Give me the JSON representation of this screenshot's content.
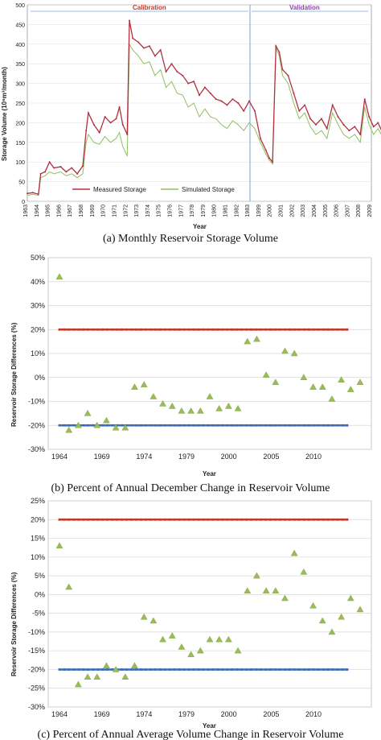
{
  "chart_data": [
    {
      "type": "line",
      "title": "",
      "ylabel": "Storage Volume (10⁶m³/month)",
      "xlabel": "Year",
      "ylim": [
        0,
        500
      ],
      "yticks": [
        "0",
        "50",
        "100",
        "150",
        "200",
        "250",
        "300",
        "350",
        "400",
        "450",
        "500"
      ],
      "xticks": [
        "1963",
        "1964",
        "1965",
        "1966",
        "1967",
        "1968",
        "1969",
        "1970",
        "1971",
        "1972",
        "1973",
        "1974",
        "1975",
        "1976",
        "1977",
        "1978",
        "1979",
        "1980",
        "1981",
        "1982",
        "1983",
        "1999",
        "2000",
        "2001",
        "2002",
        "2003",
        "2004",
        "2005",
        "2006",
        "2007",
        "2008",
        "2009"
      ],
      "periods": [
        {
          "label": "Calibration",
          "color": "#c0392b"
        },
        {
          "label": "Validation",
          "color": "#8e44ad"
        }
      ],
      "legend": [
        "Measured Storage",
        "Simulated Storage"
      ],
      "series": [
        {
          "name": "Measured Storage",
          "color": "#b03040",
          "points": [
            [
              0,
              20
            ],
            [
              0.5,
              22
            ],
            [
              1,
              18
            ],
            [
              1.2,
              70
            ],
            [
              1.6,
              75
            ],
            [
              2,
              100
            ],
            [
              2.4,
              85
            ],
            [
              3,
              88
            ],
            [
              3.5,
              75
            ],
            [
              4,
              85
            ],
            [
              4.5,
              70
            ],
            [
              5,
              90
            ],
            [
              5.3,
              180
            ],
            [
              5.5,
              225
            ],
            [
              6,
              195
            ],
            [
              6.5,
              175
            ],
            [
              7,
              215
            ],
            [
              7.5,
              200
            ],
            [
              8,
              210
            ],
            [
              8.3,
              240
            ],
            [
              8.6,
              195
            ],
            [
              9,
              170
            ],
            [
              9.2,
              460
            ],
            [
              9.5,
              415
            ],
            [
              10,
              405
            ],
            [
              10.5,
              390
            ],
            [
              11,
              395
            ],
            [
              11.5,
              370
            ],
            [
              12,
              385
            ],
            [
              12.5,
              330
            ],
            [
              13,
              350
            ],
            [
              13.5,
              330
            ],
            [
              14,
              320
            ],
            [
              14.5,
              300
            ],
            [
              15,
              305
            ],
            [
              15.5,
              270
            ],
            [
              16,
              290
            ],
            [
              16.5,
              275
            ],
            [
              17,
              260
            ],
            [
              17.5,
              255
            ],
            [
              18,
              245
            ],
            [
              18.5,
              260
            ],
            [
              19,
              250
            ],
            [
              19.5,
              230
            ],
            [
              20,
              255
            ],
            [
              20.5,
              230
            ],
            [
              21,
              160
            ],
            [
              21.5,
              130
            ],
            [
              21.8,
              110
            ],
            [
              22.1,
              100
            ],
            [
              22.4,
              395
            ],
            [
              22.7,
              380
            ],
            [
              23,
              335
            ],
            [
              23.5,
              320
            ],
            [
              24,
              275
            ],
            [
              24.5,
              230
            ],
            [
              25,
              245
            ],
            [
              25.5,
              210
            ],
            [
              26,
              195
            ],
            [
              26.5,
              210
            ],
            [
              27,
              185
            ],
            [
              27.5,
              245
            ],
            [
              28,
              215
            ],
            [
              28.5,
              195
            ],
            [
              29,
              180
            ],
            [
              29.5,
              190
            ],
            [
              30,
              170
            ],
            [
              30.4,
              260
            ],
            [
              30.8,
              215
            ],
            [
              31.2,
              190
            ],
            [
              31.6,
              200
            ],
            [
              32,
              175
            ]
          ]
        },
        {
          "name": "Simulated Storage",
          "color": "#8fbf5f",
          "points": [
            [
              0,
              15
            ],
            [
              0.5,
              18
            ],
            [
              1,
              15
            ],
            [
              1.2,
              60
            ],
            [
              1.6,
              65
            ],
            [
              2,
              75
            ],
            [
              2.4,
              70
            ],
            [
              3,
              75
            ],
            [
              3.5,
              65
            ],
            [
              4,
              70
            ],
            [
              4.5,
              60
            ],
            [
              5,
              70
            ],
            [
              5.3,
              150
            ],
            [
              5.5,
              170
            ],
            [
              6,
              150
            ],
            [
              6.5,
              145
            ],
            [
              7,
              165
            ],
            [
              7.5,
              150
            ],
            [
              8,
              160
            ],
            [
              8.3,
              175
            ],
            [
              8.6,
              140
            ],
            [
              9,
              115
            ],
            [
              9.2,
              400
            ],
            [
              9.5,
              385
            ],
            [
              10,
              370
            ],
            [
              10.5,
              350
            ],
            [
              11,
              355
            ],
            [
              11.5,
              320
            ],
            [
              12,
              335
            ],
            [
              12.5,
              290
            ],
            [
              13,
              305
            ],
            [
              13.5,
              275
            ],
            [
              14,
              270
            ],
            [
              14.5,
              240
            ],
            [
              15,
              250
            ],
            [
              15.5,
              215
            ],
            [
              16,
              235
            ],
            [
              16.5,
              215
            ],
            [
              17,
              210
            ],
            [
              17.5,
              195
            ],
            [
              18,
              185
            ],
            [
              18.5,
              205
            ],
            [
              19,
              195
            ],
            [
              19.5,
              180
            ],
            [
              20,
              200
            ],
            [
              20.5,
              185
            ],
            [
              21,
              150
            ],
            [
              21.5,
              120
            ],
            [
              21.8,
              105
            ],
            [
              22.1,
              95
            ],
            [
              22.4,
              390
            ],
            [
              22.7,
              370
            ],
            [
              23,
              320
            ],
            [
              23.5,
              300
            ],
            [
              24,
              250
            ],
            [
              24.5,
              210
            ],
            [
              25,
              225
            ],
            [
              25.5,
              190
            ],
            [
              26,
              170
            ],
            [
              26.5,
              180
            ],
            [
              27,
              160
            ],
            [
              27.5,
              225
            ],
            [
              28,
              195
            ],
            [
              28.5,
              170
            ],
            [
              29,
              160
            ],
            [
              29.5,
              170
            ],
            [
              30,
              150
            ],
            [
              30.4,
              240
            ],
            [
              30.8,
              195
            ],
            [
              31.2,
              170
            ],
            [
              31.6,
              185
            ],
            [
              32,
              165
            ]
          ]
        }
      ],
      "caption": "(a) Monthly Reservoir Storage Volume"
    },
    {
      "type": "scatter",
      "ylabel": "Reservoir Storage Differences (%)",
      "xlabel": "Year",
      "ylim": [
        -30,
        50
      ],
      "yticks": [
        "-30%",
        "-20%",
        "-10%",
        "0%",
        "10%",
        "20%",
        "30%",
        "40%",
        "50%"
      ],
      "xticks": [
        "1964",
        "1969",
        "1974",
        "1979",
        "2000",
        "2005",
        "2010"
      ],
      "bounds": [
        {
          "value": 20,
          "color": "#c0392b"
        },
        {
          "value": -20,
          "color": "#3a6fb5"
        }
      ],
      "points": [
        [
          0,
          42
        ],
        [
          1,
          -22
        ],
        [
          2,
          -20
        ],
        [
          3,
          -15
        ],
        [
          4,
          -20
        ],
        [
          5,
          -18
        ],
        [
          6,
          -21
        ],
        [
          7,
          -21
        ],
        [
          8,
          -4
        ],
        [
          9,
          -3
        ],
        [
          10,
          -8
        ],
        [
          11,
          -11
        ],
        [
          12,
          -12
        ],
        [
          13,
          -14
        ],
        [
          14,
          -14
        ],
        [
          15,
          -14
        ],
        [
          16,
          -8
        ],
        [
          17,
          -13
        ],
        [
          18,
          -12
        ],
        [
          19,
          -13
        ],
        [
          20,
          15
        ],
        [
          21,
          16
        ],
        [
          22,
          1
        ],
        [
          23,
          -2
        ],
        [
          24,
          11
        ],
        [
          25,
          10
        ],
        [
          26,
          0
        ],
        [
          27,
          -4
        ],
        [
          28,
          -4
        ],
        [
          29,
          -9
        ],
        [
          30,
          -1
        ],
        [
          31,
          -5
        ],
        [
          32,
          -2
        ]
      ],
      "caption": "(b) Percent of Annual December Change in Reservoir Volume"
    },
    {
      "type": "scatter",
      "ylabel": "Reservoir Storage Differences (%)",
      "xlabel": "Year",
      "ylim": [
        -30,
        25
      ],
      "yticks": [
        "-30%",
        "-25%",
        "-20%",
        "-15%",
        "-10%",
        "-5%",
        "0%",
        "5%",
        "10%",
        "15%",
        "20%",
        "25%"
      ],
      "xticks": [
        "1964",
        "1969",
        "1974",
        "1979",
        "2000",
        "2005",
        "2010"
      ],
      "bounds": [
        {
          "value": 20,
          "color": "#c0392b"
        },
        {
          "value": -20,
          "color": "#3a6fb5"
        }
      ],
      "points": [
        [
          0,
          13
        ],
        [
          1,
          2
        ],
        [
          2,
          -24
        ],
        [
          3,
          -22
        ],
        [
          4,
          -22
        ],
        [
          5,
          -19
        ],
        [
          6,
          -20
        ],
        [
          7,
          -22
        ],
        [
          8,
          -19
        ],
        [
          9,
          -6
        ],
        [
          10,
          -7
        ],
        [
          11,
          -12
        ],
        [
          12,
          -11
        ],
        [
          13,
          -14
        ],
        [
          14,
          -16
        ],
        [
          15,
          -15
        ],
        [
          16,
          -12
        ],
        [
          17,
          -12
        ],
        [
          18,
          -12
        ],
        [
          19,
          -15
        ],
        [
          20,
          1
        ],
        [
          21,
          5
        ],
        [
          22,
          1
        ],
        [
          23,
          1
        ],
        [
          24,
          -1
        ],
        [
          25,
          11
        ],
        [
          26,
          6
        ],
        [
          27,
          -3
        ],
        [
          28,
          -7
        ],
        [
          29,
          -10
        ],
        [
          30,
          -6
        ],
        [
          31,
          -1
        ],
        [
          32,
          -4
        ]
      ],
      "caption": "(c) Percent of Annual Average Volume Change in Reservoir Volume"
    }
  ]
}
